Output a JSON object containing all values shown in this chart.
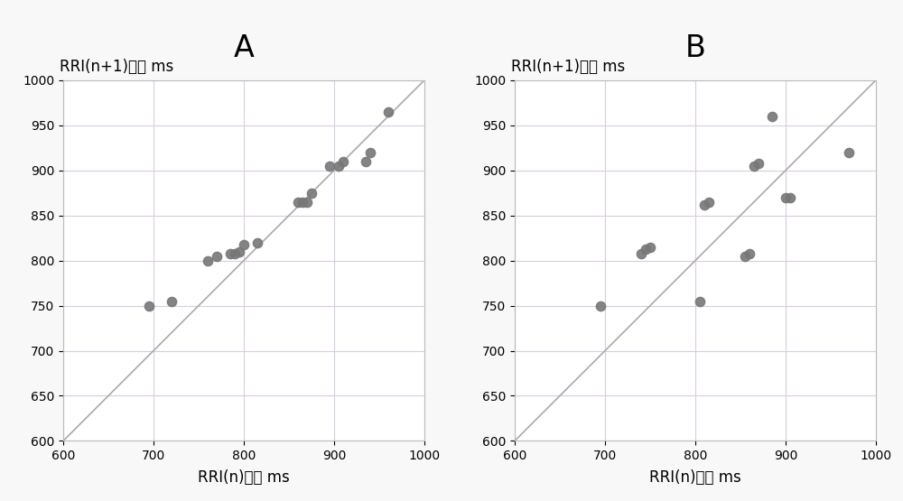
{
  "panel_A": {
    "title": "A",
    "xlabel": "RRI(n)单位 ms",
    "ylabel": "RRI(n+1)单位 ms",
    "xlim": [
      600,
      1000
    ],
    "ylim": [
      600,
      1000
    ],
    "xticks": [
      600,
      700,
      800,
      900,
      1000
    ],
    "yticks": [
      600,
      650,
      700,
      750,
      800,
      850,
      900,
      950,
      1000
    ],
    "scatter_x": [
      695,
      720,
      760,
      770,
      785,
      790,
      795,
      800,
      815,
      860,
      865,
      870,
      875,
      895,
      905,
      910,
      935,
      940,
      960
    ],
    "scatter_y": [
      750,
      755,
      800,
      805,
      808,
      808,
      810,
      818,
      820,
      865,
      865,
      865,
      875,
      905,
      905,
      910,
      910,
      920,
      965
    ]
  },
  "panel_B": {
    "title": "B",
    "xlabel": "RRI(n)单位 ms",
    "ylabel": "RRI(n+1)单位 ms",
    "xlim": [
      600,
      1000
    ],
    "ylim": [
      600,
      1000
    ],
    "xticks": [
      600,
      700,
      800,
      900,
      1000
    ],
    "yticks": [
      600,
      650,
      700,
      750,
      800,
      850,
      900,
      950,
      1000
    ],
    "scatter_x": [
      695,
      740,
      745,
      750,
      805,
      810,
      815,
      855,
      860,
      865,
      870,
      885,
      900,
      905,
      970
    ],
    "scatter_y": [
      750,
      808,
      813,
      815,
      755,
      862,
      865,
      805,
      808,
      905,
      908,
      960,
      870,
      870,
      920
    ]
  },
  "dot_color": "#777777",
  "line_color": "#aaaaaa",
  "grid_color": "#d8cce0",
  "bg_color": "#ffffff",
  "fig_bg_color": "#f8f8f8",
  "title_fontsize": 24,
  "label_fontsize": 12,
  "tick_fontsize": 10,
  "dot_size": 55,
  "line_width": 1.2
}
